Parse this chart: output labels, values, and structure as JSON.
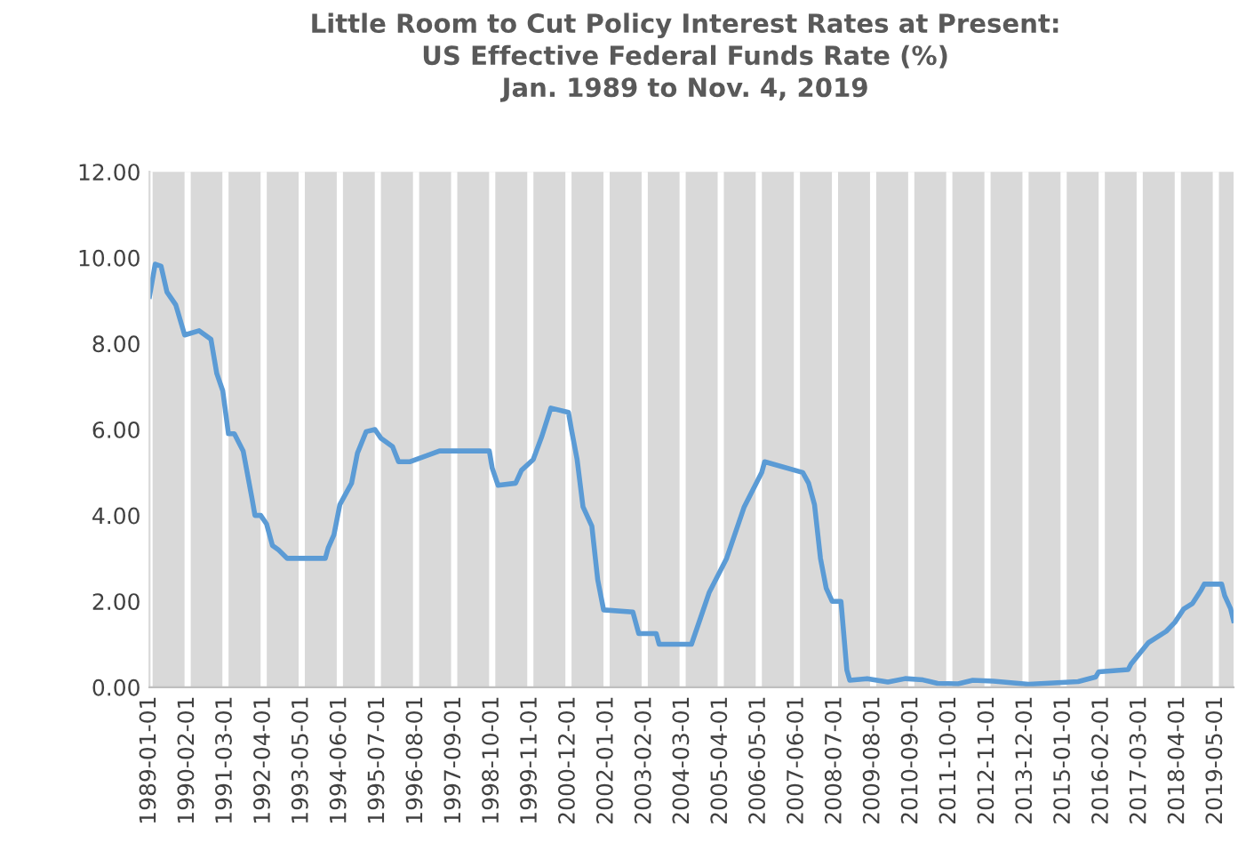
{
  "chart_data": {
    "type": "line",
    "title": "Little Room to Cut Policy Interest Rates at Present:\nUS Effective Federal Funds Rate (%)\nJan. 1989 to Nov. 4, 2019",
    "x": [
      "1989-01",
      "1989-03",
      "1989-05",
      "1989-07",
      "1989-10",
      "1990-01",
      "1990-06",
      "1990-10",
      "1990-12",
      "1991-02",
      "1991-04",
      "1991-06",
      "1991-09",
      "1991-12",
      "1992-01",
      "1992-03",
      "1992-05",
      "1992-07",
      "1992-09",
      "1992-12",
      "1993-06",
      "1994-01",
      "1994-02",
      "1994-04",
      "1994-06",
      "1994-08",
      "1994-10",
      "1994-12",
      "1995-03",
      "1995-06",
      "1995-08",
      "1995-12",
      "1996-02",
      "1996-06",
      "1997-04",
      "1998-09",
      "1998-10",
      "1998-12",
      "1999-06",
      "1999-08",
      "1999-12",
      "2000-03",
      "2000-06",
      "2000-12",
      "2001-01",
      "2001-03",
      "2001-05",
      "2001-08",
      "2001-10",
      "2001-12",
      "2002-10",
      "2002-12",
      "2003-06",
      "2003-07",
      "2004-06",
      "2004-09",
      "2004-12",
      "2005-06",
      "2005-12",
      "2006-06",
      "2006-07",
      "2007-08",
      "2007-10",
      "2007-12",
      "2008-02",
      "2008-04",
      "2008-06",
      "2008-09",
      "2008-11",
      "2008-12",
      "2009-06",
      "2010-01",
      "2010-07",
      "2011-01",
      "2011-06",
      "2012-01",
      "2012-06",
      "2013-01",
      "2014-01",
      "2015-06",
      "2015-12",
      "2016-01",
      "2016-11",
      "2016-12",
      "2017-03",
      "2017-06",
      "2017-12",
      "2018-03",
      "2018-06",
      "2018-09",
      "2018-12",
      "2019-01",
      "2019-07",
      "2019-08",
      "2019-10",
      "2019-11"
    ],
    "series": [
      {
        "color": "#5b9bd5",
        "values": [
          9.1,
          9.85,
          9.8,
          9.2,
          8.9,
          8.2,
          8.3,
          8.1,
          7.3,
          6.9,
          5.9,
          5.9,
          5.5,
          4.4,
          4.0,
          4.0,
          3.8,
          3.3,
          3.2,
          3.0,
          3.0,
          3.0,
          3.25,
          3.55,
          4.25,
          4.5,
          4.75,
          5.45,
          5.95,
          6.0,
          5.8,
          5.6,
          5.25,
          5.25,
          5.5,
          5.5,
          5.1,
          4.7,
          4.75,
          5.05,
          5.3,
          5.85,
          6.5,
          6.4,
          6.0,
          5.3,
          4.2,
          3.75,
          2.5,
          1.8,
          1.75,
          1.25,
          1.25,
          1.0,
          1.0,
          1.6,
          2.2,
          3.0,
          4.2,
          5.0,
          5.25,
          5.0,
          4.75,
          4.25,
          3.0,
          2.3,
          2.0,
          2.0,
          0.4,
          0.16,
          0.2,
          0.12,
          0.2,
          0.17,
          0.09,
          0.08,
          0.16,
          0.14,
          0.07,
          0.13,
          0.24,
          0.36,
          0.41,
          0.54,
          0.79,
          1.04,
          1.3,
          1.51,
          1.82,
          1.95,
          2.27,
          2.4,
          2.4,
          2.13,
          1.83,
          1.55
        ]
      }
    ],
    "xlim": [
      "1989-01",
      "2019-11"
    ],
    "xticks": [
      "1989-01-01",
      "1990-02-01",
      "1991-03-01",
      "1992-04-01",
      "1993-05-01",
      "1994-06-01",
      "1995-07-01",
      "1996-08-01",
      "1997-09-01",
      "1998-10-01",
      "1999-11-01",
      "2000-12-01",
      "2002-01-01",
      "2003-02-01",
      "2004-03-01",
      "2005-04-01",
      "2006-05-01",
      "2007-06-01",
      "2008-07-01",
      "2009-08-01",
      "2010-09-01",
      "2011-10-01",
      "2012-11-01",
      "2013-12-01",
      "2015-01-01",
      "2016-02-01",
      "2017-03-01",
      "2018-04-01",
      "2019-05-01"
    ],
    "ylim": [
      0,
      12
    ],
    "yticks": [
      {
        "value": 0,
        "label": "0.00"
      },
      {
        "value": 2,
        "label": "2.00"
      },
      {
        "value": 4,
        "label": "4.00"
      },
      {
        "value": 6,
        "label": "6.00"
      },
      {
        "value": 8,
        "label": "8.00"
      },
      {
        "value": 10,
        "label": "10.00"
      },
      {
        "value": 12,
        "label": "12.00"
      }
    ],
    "grid": "x",
    "marker": "none",
    "line_style": "solid"
  }
}
